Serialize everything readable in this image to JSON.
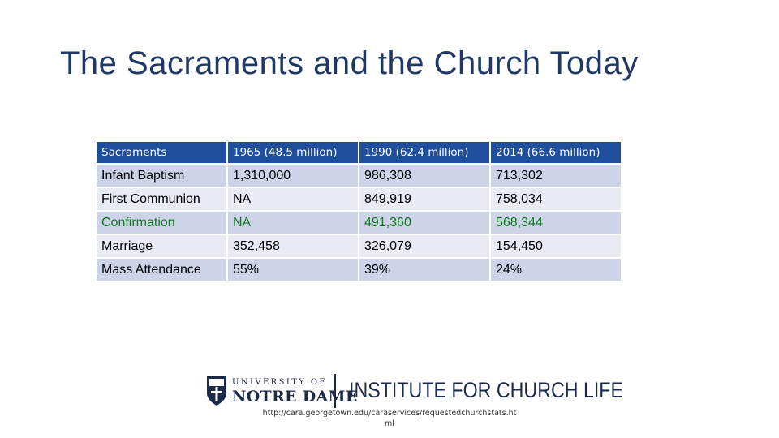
{
  "title": "The Sacraments and the Church Today",
  "table": {
    "headers": [
      "Sacraments",
      "1965 (48.5 million)",
      "1990 (62.4 million)",
      "2014 (66.6 million)"
    ],
    "rows": [
      [
        "Infant Baptism",
        "1,310,000",
        "986,308",
        "713,302"
      ],
      [
        "First Communion",
        "NA",
        "849,919",
        "758,034"
      ],
      [
        "Confirmation",
        "NA",
        "491,360",
        "568,344"
      ],
      [
        "Marriage",
        "352,458",
        "326,079",
        "154,450"
      ],
      [
        "Mass Attendance",
        "55%",
        "39%",
        "24%"
      ]
    ]
  },
  "logos": {
    "university_line": "UNIVERSITY OF",
    "university_name": "NOTRE DAME",
    "institute": "INSTITUTE FOR CHURCH LIFE"
  },
  "source_url": "http://cara.georgetown.edu/caraservices/requestedchurchstats.html",
  "colors": {
    "title": "#1f3864",
    "header_bg": "#1f4e9c",
    "row_dark": "#cdd4e8",
    "row_light": "#e8ebf4",
    "green_text": "#0f7b1f"
  }
}
